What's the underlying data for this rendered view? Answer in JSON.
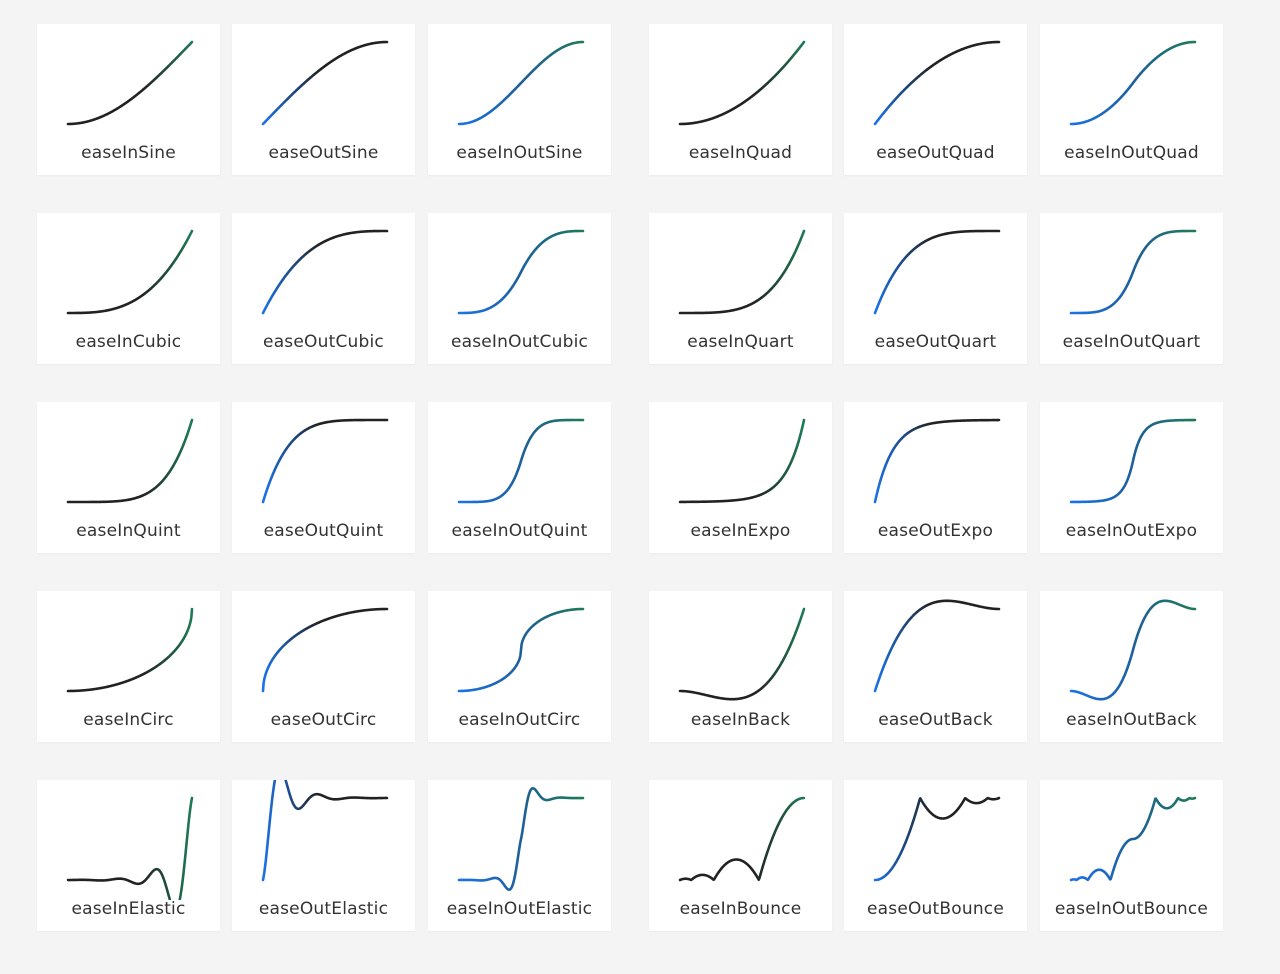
{
  "cards": [
    "easeInSine",
    "easeOutSine",
    "easeInOutSine",
    "easeInQuad",
    "easeOutQuad",
    "easeInOutQuad",
    "easeInCubic",
    "easeOutCubic",
    "easeInOutCubic",
    "easeInQuart",
    "easeOutQuart",
    "easeInOutQuart",
    "easeInQuint",
    "easeOutQuint",
    "easeInOutQuint",
    "easeInExpo",
    "easeOutExpo",
    "easeInOutExpo",
    "easeInCirc",
    "easeOutCirc",
    "easeInOutCirc",
    "easeInBack",
    "easeOutBack",
    "easeInOutBack",
    "easeInElastic",
    "easeOutElastic",
    "easeInOutElastic",
    "easeInBounce",
    "easeOutBounce",
    "easeInOutBounce"
  ]
}
